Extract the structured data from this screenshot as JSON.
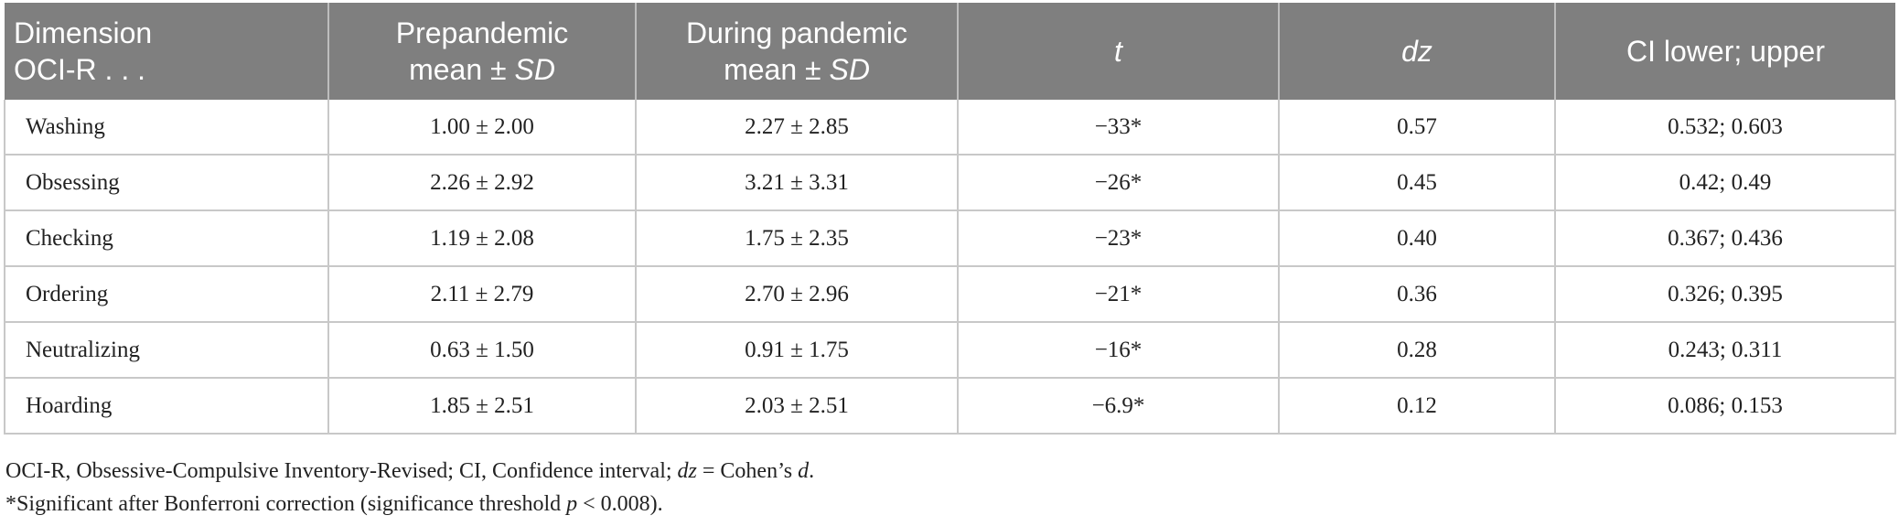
{
  "table": {
    "headers": {
      "dimension_line1": "Dimension",
      "dimension_line2": "OCI-R . . .",
      "pre_line1": "Prepandemic",
      "pre_line2_prefix": "mean ± ",
      "pre_line2_sd": "SD",
      "during_line1": "During pandemic",
      "during_line2_prefix": "mean ± ",
      "during_line2_sd": "SD",
      "t": "t",
      "dz": "dz",
      "ci": "CI lower; upper"
    },
    "rows": [
      {
        "dimension": "Washing",
        "pre": "1.00 ± 2.00",
        "during": "2.27 ± 2.85",
        "t": "−33*",
        "dz": "0.57",
        "ci": "0.532; 0.603"
      },
      {
        "dimension": "Obsessing",
        "pre": "2.26 ± 2.92",
        "during": "3.21 ± 3.31",
        "t": "−26*",
        "dz": "0.45",
        "ci": "0.42; 0.49"
      },
      {
        "dimension": "Checking",
        "pre": "1.19 ± 2.08",
        "during": "1.75 ± 2.35",
        "t": "−23*",
        "dz": "0.40",
        "ci": "0.367; 0.436"
      },
      {
        "dimension": "Ordering",
        "pre": "2.11 ± 2.79",
        "during": "2.70 ± 2.96",
        "t": "−21*",
        "dz": "0.36",
        "ci": "0.326; 0.395"
      },
      {
        "dimension": "Neutralizing",
        "pre": "0.63 ± 1.50",
        "during": "0.91 ± 1.75",
        "t": "−16*",
        "dz": "0.28",
        "ci": "0.243; 0.311"
      },
      {
        "dimension": "Hoarding",
        "pre": "1.85 ± 2.51",
        "during": "2.03 ± 2.51",
        "t": "−6.9*",
        "dz": "0.12",
        "ci": "0.086; 0.153"
      }
    ]
  },
  "footnotes": {
    "abbrev_part1": "OCI-R, Obsessive-Compulsive Inventory-Revised; CI, Confidence interval; ",
    "abbrev_dz": "dz",
    "abbrev_part2": " = Cohen’s ",
    "abbrev_d": "d",
    "abbrev_end": ".",
    "sig_part1": "*Significant after Bonferroni correction (significance threshold ",
    "sig_p": "p",
    "sig_part2": " < 0.008)."
  }
}
